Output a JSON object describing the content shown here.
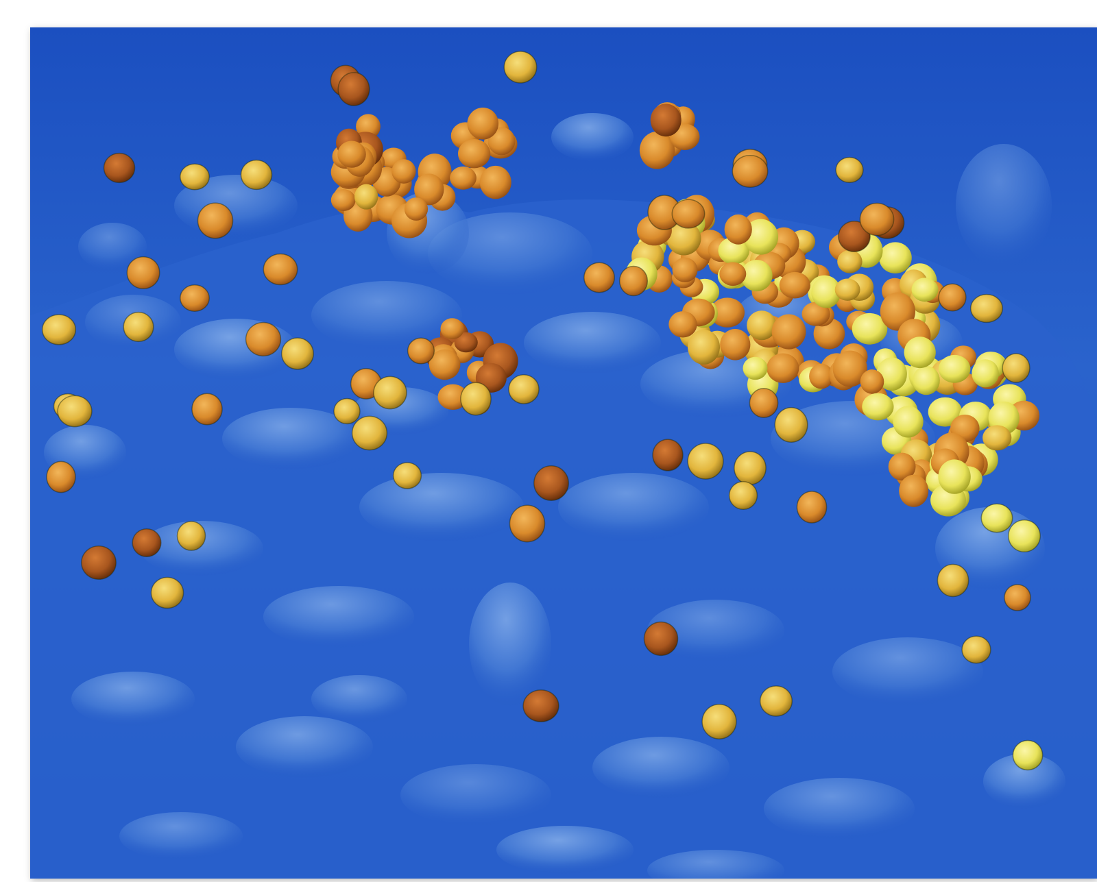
{
  "image": {
    "subject": "micrograph-false-color",
    "colors": {
      "background": "#1f55c4",
      "surface_dark": "#1c4fb8",
      "surface_mid": "#2f67cf",
      "surface_light": "#6b9be0",
      "particle_orange": "#d98a2b",
      "particle_brown": "#a8561e",
      "particle_gold": "#e2b53c",
      "particle_yellow": "#e8e35a"
    }
  }
}
